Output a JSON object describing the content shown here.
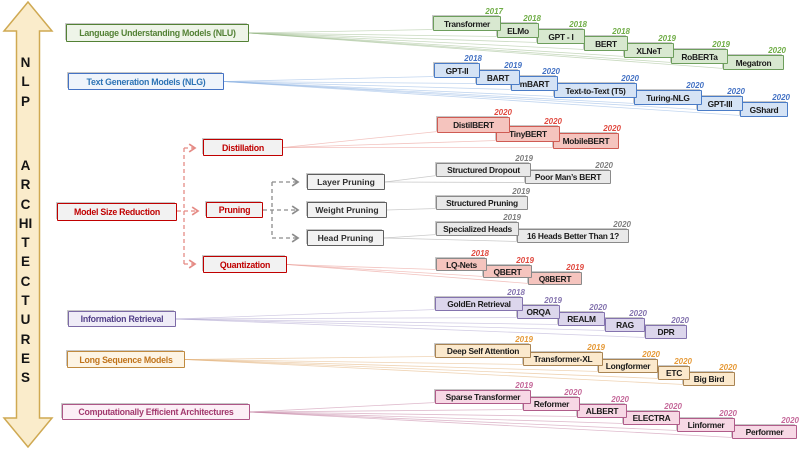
{
  "arrow": {
    "top_label": "NLP",
    "bottom_label": "ARCHITECTURES"
  },
  "sections": {
    "nlu": {
      "label": "Language Understanding Models (NLU)",
      "color": "#9cbb8c",
      "models": [
        {
          "label": "Transformer",
          "year": "2017"
        },
        {
          "label": "ELMo",
          "year": "2018"
        },
        {
          "label": "GPT - I",
          "year": "2018"
        },
        {
          "label": "BERT",
          "year": "2018"
        },
        {
          "label": "XLNeT",
          "year": "2019"
        },
        {
          "label": "RoBERTa",
          "year": "2019"
        },
        {
          "label": "Megatron",
          "year": "2020"
        }
      ]
    },
    "nlg": {
      "label": "Text Generation Models (NLG)",
      "color": "#8fb4e3",
      "models": [
        {
          "label": "GPT-II",
          "year": "2018"
        },
        {
          "label": "BART",
          "year": "2019"
        },
        {
          "label": "mBART",
          "year": "2020"
        },
        {
          "label": "Text-to-Text (T5)",
          "year": "2020"
        },
        {
          "label": "Turing-NLG",
          "year": "2020"
        },
        {
          "label": "GPT-III",
          "year": "2020"
        },
        {
          "label": "GShard",
          "year": "2020"
        }
      ]
    },
    "msr": {
      "label": "Model Size Reduction",
      "color": "#e8938c",
      "distillation": {
        "label": "Distillation",
        "color": "#e8938c",
        "models": [
          {
            "label": "DistilBERT",
            "year": "2020"
          },
          {
            "label": "TinyBERT",
            "year": "2020"
          },
          {
            "label": "MobileBERT",
            "year": "2020"
          }
        ]
      },
      "pruning": {
        "label": "Pruning",
        "color": "#a0a0a0",
        "subcategories": [
          {
            "label": "Layer Pruning"
          },
          {
            "label": "Weight Pruning"
          },
          {
            "label": "Head Pruning"
          }
        ],
        "models": [
          {
            "label": "Structured Dropout",
            "year": "2019"
          },
          {
            "label": "Poor Man’s BERT",
            "year": "2020"
          },
          {
            "label": "Structured Pruning",
            "year": "2019"
          },
          {
            "label": "Specialized Heads",
            "year": "2019"
          },
          {
            "label": "16 Heads Better Than 1?",
            "year": "2020"
          }
        ]
      },
      "quantization": {
        "label": "Quantization",
        "color": "#e8938c",
        "models": [
          {
            "label": "LQ-Nets",
            "year": "2018"
          },
          {
            "label": "QBERT",
            "year": "2019"
          },
          {
            "label": "Q8BERT",
            "year": "2019"
          }
        ]
      }
    },
    "ir": {
      "label": "Information Retrieval",
      "color": "#b0a6d0",
      "models": [
        {
          "label": "GoldEn Retrieval",
          "year": "2018"
        },
        {
          "label": "ORQA",
          "year": "2019"
        },
        {
          "label": "REALM",
          "year": "2020"
        },
        {
          "label": "RAG",
          "year": "2020"
        },
        {
          "label": "DPR",
          "year": "2020"
        }
      ]
    },
    "lsm": {
      "label": "Long Sequence Models",
      "color": "#e2b077",
      "models": [
        {
          "label": "Deep Self Attention",
          "year": "2019"
        },
        {
          "label": "Transformer-XL",
          "year": "2019"
        },
        {
          "label": "Longformer",
          "year": "2020"
        },
        {
          "label": "ETC",
          "year": "2020"
        },
        {
          "label": "Big Bird",
          "year": "2020"
        }
      ]
    },
    "cea": {
      "label": "Computationally Efficient Architectures",
      "color": "#c585a5",
      "models": [
        {
          "label": "Sparse Transformer",
          "year": "2019"
        },
        {
          "label": "Reformer",
          "year": "2020"
        },
        {
          "label": "ALBERT",
          "year": "2020"
        },
        {
          "label": "ELECTRA",
          "year": "2020"
        },
        {
          "label": "Linformer",
          "year": "2020"
        },
        {
          "label": "Performer",
          "year": "2020"
        }
      ]
    }
  }
}
